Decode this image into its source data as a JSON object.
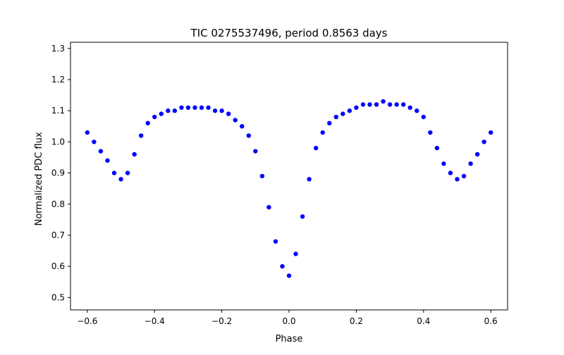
{
  "chart_data": {
    "type": "scatter",
    "title": "TIC 0275537496, period 0.8563 days",
    "xlabel": "Phase",
    "ylabel": "Normalized PDC flux",
    "xlim": [
      -0.65,
      0.65
    ],
    "ylim": [
      0.46,
      1.32
    ],
    "xticks": [
      -0.6,
      -0.4,
      -0.2,
      0.0,
      0.2,
      0.4,
      0.6
    ],
    "xtick_labels": [
      "−0.6",
      "−0.4",
      "−0.2",
      "0.0",
      "0.2",
      "0.4",
      "0.6"
    ],
    "yticks": [
      0.5,
      0.6,
      0.7,
      0.8,
      0.9,
      1.0,
      1.1,
      1.2,
      1.3
    ],
    "ytick_labels": [
      "0.5",
      "0.6",
      "0.7",
      "0.8",
      "0.9",
      "1.0",
      "1.1",
      "1.2",
      "1.3"
    ],
    "grid": false,
    "legend": "none",
    "marker_color": "#0000ff",
    "series": [
      {
        "x": [
          -0.6,
          -0.58,
          -0.56,
          -0.54,
          -0.52,
          -0.5,
          -0.48,
          -0.46,
          -0.44,
          -0.42,
          -0.4,
          -0.38,
          -0.36,
          -0.34,
          -0.32,
          -0.3,
          -0.28,
          -0.26,
          -0.24,
          -0.22,
          -0.2,
          -0.18,
          -0.16,
          -0.14,
          -0.12,
          -0.1,
          -0.08,
          -0.06,
          -0.04,
          -0.02,
          0.0,
          0.02,
          0.04,
          0.06,
          0.08,
          0.1,
          0.12,
          0.14,
          0.16,
          0.18,
          0.2,
          0.22,
          0.24,
          0.26,
          0.28,
          0.3,
          0.32,
          0.34,
          0.36,
          0.38,
          0.4,
          0.42,
          0.44,
          0.46,
          0.48,
          0.5,
          0.52,
          0.54,
          0.56,
          0.58,
          0.6
        ],
        "y": [
          1.03,
          1.0,
          0.97,
          0.94,
          0.9,
          0.88,
          0.9,
          0.96,
          1.02,
          1.06,
          1.08,
          1.09,
          1.1,
          1.1,
          1.11,
          1.11,
          1.11,
          1.11,
          1.11,
          1.1,
          1.1,
          1.09,
          1.07,
          1.05,
          1.02,
          0.97,
          0.89,
          0.79,
          0.68,
          0.6,
          0.57,
          0.64,
          0.76,
          0.88,
          0.98,
          1.03,
          1.06,
          1.08,
          1.09,
          1.1,
          1.11,
          1.12,
          1.12,
          1.12,
          1.13,
          1.12,
          1.12,
          1.12,
          1.11,
          1.1,
          1.08,
          1.03,
          0.98,
          0.93,
          0.9,
          0.88,
          0.89,
          0.93,
          0.96,
          1.0,
          1.03
        ]
      }
    ]
  }
}
